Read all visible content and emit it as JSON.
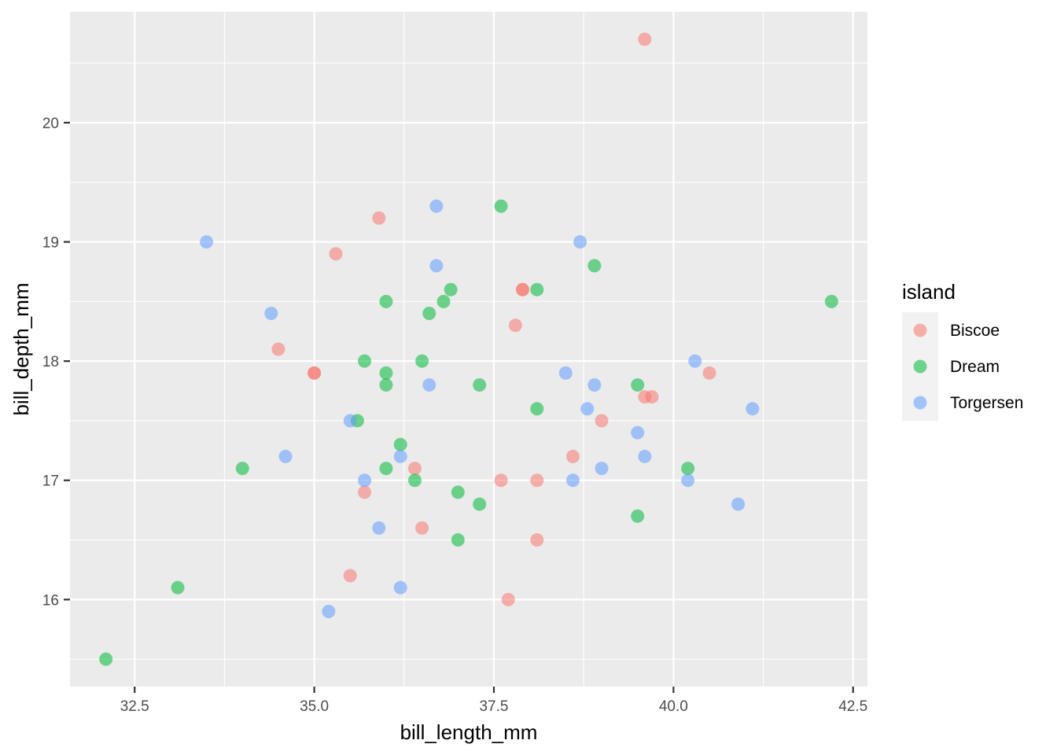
{
  "chart_data": {
    "type": "scatter",
    "title": "",
    "xlabel": "bill_length_mm",
    "ylabel": "bill_depth_mm",
    "xlim": [
      31.6,
      42.7
    ],
    "ylim": [
      15.27,
      20.93
    ],
    "x_ticks": [
      32.5,
      35.0,
      37.5,
      40.0,
      42.5
    ],
    "x_tick_labels": [
      "32.5",
      "35.0",
      "37.5",
      "40.0",
      "42.5"
    ],
    "y_ticks": [
      16,
      17,
      18,
      19,
      20
    ],
    "y_tick_labels": [
      "16",
      "17",
      "18",
      "19",
      "20"
    ],
    "grid": true,
    "legend": {
      "title": "island",
      "position": "right"
    },
    "series": [
      {
        "name": "Biscoe",
        "color": "#F8766D",
        "points": [
          [
            39.6,
            20.7
          ],
          [
            35.9,
            19.2
          ],
          [
            35.3,
            18.9
          ],
          [
            37.9,
            18.6
          ],
          [
            37.9,
            18.6
          ],
          [
            37.8,
            18.3
          ],
          [
            34.5,
            18.1
          ],
          [
            35.0,
            17.9
          ],
          [
            35.0,
            17.9
          ],
          [
            40.5,
            17.9
          ],
          [
            39.6,
            17.7
          ],
          [
            39.7,
            17.7
          ],
          [
            39.0,
            17.5
          ],
          [
            38.6,
            17.2
          ],
          [
            36.4,
            17.1
          ],
          [
            37.6,
            17.0
          ],
          [
            38.1,
            17.0
          ],
          [
            35.7,
            16.9
          ],
          [
            36.5,
            16.6
          ],
          [
            38.1,
            16.5
          ],
          [
            35.5,
            16.2
          ],
          [
            37.7,
            16.0
          ]
        ]
      },
      {
        "name": "Dream",
        "color": "#00BA38",
        "points": [
          [
            37.6,
            19.3
          ],
          [
            38.9,
            18.8
          ],
          [
            36.9,
            18.6
          ],
          [
            38.1,
            18.6
          ],
          [
            36.0,
            18.5
          ],
          [
            36.8,
            18.5
          ],
          [
            42.2,
            18.5
          ],
          [
            36.6,
            18.4
          ],
          [
            35.7,
            18.0
          ],
          [
            36.5,
            18.0
          ],
          [
            36.0,
            17.9
          ],
          [
            36.0,
            17.8
          ],
          [
            37.3,
            17.8
          ],
          [
            39.5,
            17.8
          ],
          [
            38.1,
            17.6
          ],
          [
            35.6,
            17.5
          ],
          [
            36.2,
            17.3
          ],
          [
            34.0,
            17.1
          ],
          [
            36.0,
            17.1
          ],
          [
            40.2,
            17.1
          ],
          [
            36.4,
            17.0
          ],
          [
            37.0,
            16.9
          ],
          [
            37.3,
            16.8
          ],
          [
            39.5,
            16.7
          ],
          [
            37.0,
            16.5
          ],
          [
            33.1,
            16.1
          ],
          [
            32.1,
            15.5
          ]
        ]
      },
      {
        "name": "Torgersen",
        "color": "#619CFF",
        "points": [
          [
            36.7,
            19.3
          ],
          [
            33.5,
            19.0
          ],
          [
            38.7,
            19.0
          ],
          [
            36.7,
            18.8
          ],
          [
            34.4,
            18.4
          ],
          [
            40.3,
            18.0
          ],
          [
            38.5,
            17.9
          ],
          [
            36.6,
            17.8
          ],
          [
            38.9,
            17.8
          ],
          [
            38.8,
            17.6
          ],
          [
            41.1,
            17.6
          ],
          [
            35.5,
            17.5
          ],
          [
            39.5,
            17.4
          ],
          [
            34.6,
            17.2
          ],
          [
            36.2,
            17.2
          ],
          [
            39.6,
            17.2
          ],
          [
            39.0,
            17.1
          ],
          [
            35.7,
            17.0
          ],
          [
            38.6,
            17.0
          ],
          [
            40.2,
            17.0
          ],
          [
            40.9,
            16.8
          ],
          [
            35.9,
            16.6
          ],
          [
            36.2,
            16.1
          ],
          [
            35.2,
            15.9
          ]
        ]
      }
    ]
  }
}
